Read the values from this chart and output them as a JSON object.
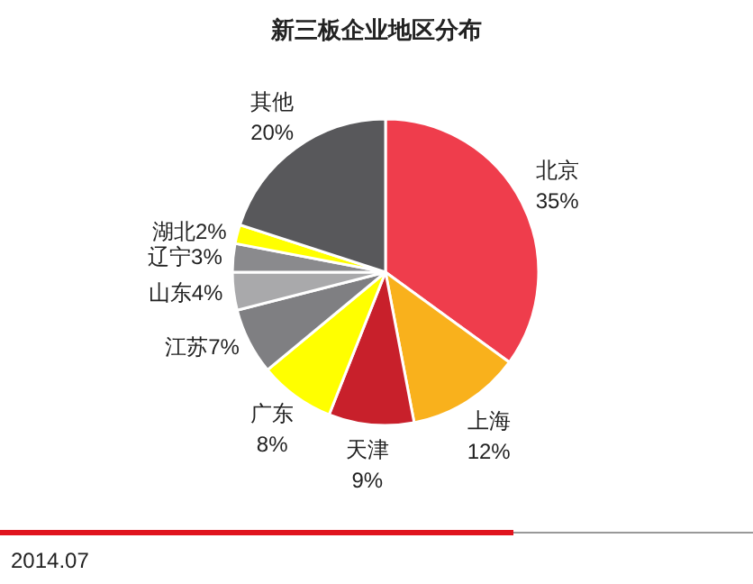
{
  "chart_data": {
    "type": "pie",
    "title": "新三板企业地区分布",
    "categories": [
      "北京",
      "上海",
      "天津",
      "广东",
      "江苏",
      "山东",
      "辽宁",
      "湖北",
      "其他"
    ],
    "values": [
      35,
      12,
      9,
      8,
      7,
      4,
      3,
      2,
      20
    ],
    "value_labels": [
      "35%",
      "12%",
      "9%",
      "8%",
      "7%",
      "4%",
      "3%",
      "2%",
      "20%"
    ],
    "colors": [
      "#ef3d4c",
      "#f9b11c",
      "#c8202b",
      "#ffff00",
      "#7f7f82",
      "#a9a9ab",
      "#8a8a8d",
      "#ffff00",
      "#58585b"
    ],
    "annotations": [
      "2014.07"
    ],
    "legend": false
  }
}
